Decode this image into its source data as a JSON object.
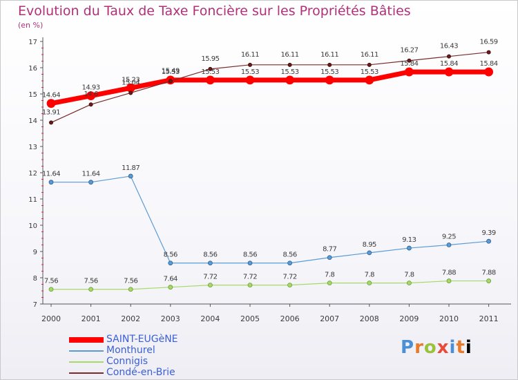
{
  "header": {
    "title": "Evolution du Taux de Taxe Foncière sur les Propriétés Bâties",
    "unit": "(en %)"
  },
  "brand": {
    "letters": [
      "P",
      "r",
      "o",
      "x",
      "i",
      "t",
      "i"
    ]
  },
  "colors": {
    "title": "#b0307a",
    "axis": "#555555",
    "tick_red": "#e0204a",
    "label": "#3a3a3a"
  },
  "chart_data": {
    "type": "line",
    "title": "Evolution du Taux de Taxe Foncière sur les Propriétés Bâties",
    "ylabel": "(en %)",
    "xlabel": "",
    "ylim": [
      7,
      17
    ],
    "yticks": [
      "7",
      "8",
      "9",
      "10",
      "11",
      "12",
      "13",
      "14",
      "15",
      "16",
      "17"
    ],
    "categories": [
      "2000",
      "2001",
      "2002",
      "2003",
      "2004",
      "2005",
      "2006",
      "2007",
      "2008",
      "2009",
      "2010",
      "2011"
    ],
    "series": [
      {
        "name": "SAINT-EUGèNE",
        "color": "#ff0000",
        "values": [
          14.64,
          14.93,
          15.23,
          15.53,
          15.53,
          15.53,
          15.53,
          15.53,
          15.53,
          15.84,
          15.84,
          15.84
        ],
        "labels": [
          "14.64",
          "14.93",
          "15.23",
          "15.53",
          "15.53",
          "15.53",
          "15.53",
          "15.53",
          "15.53",
          "15.84",
          "15.84",
          "15.84"
        ]
      },
      {
        "name": "Monthurel",
        "color": "#5b9bd5",
        "values": [
          11.64,
          11.64,
          11.87,
          8.56,
          8.56,
          8.56,
          8.56,
          8.77,
          8.95,
          9.13,
          9.25,
          9.39
        ],
        "labels": [
          "11.64",
          "11.64",
          "11.87",
          "8.56",
          "8.56",
          "8.56",
          "8.56",
          "8.77",
          "8.95",
          "9.13",
          "9.25",
          "9.39"
        ]
      },
      {
        "name": "Connigis",
        "color": "#a6d96a",
        "values": [
          7.56,
          7.56,
          7.56,
          7.64,
          7.72,
          7.72,
          7.72,
          7.8,
          7.8,
          7.8,
          7.88,
          7.88
        ],
        "labels": [
          "7.56",
          "7.56",
          "7.56",
          "7.64",
          "7.72",
          "7.72",
          "7.72",
          "7.8",
          "7.8",
          "7.8",
          "7.88",
          "7.88"
        ]
      },
      {
        "name": "Condé-en-Brie",
        "color": "#7a2a2a",
        "values": [
          13.91,
          14.6,
          15.04,
          15.49,
          15.95,
          16.11,
          16.11,
          16.11,
          16.11,
          16.27,
          16.43,
          16.59
        ],
        "labels": [
          "13.91",
          "14.6",
          "15.04",
          "15.49",
          "15.95",
          "16.11",
          "16.11",
          "16.11",
          "16.11",
          "16.27",
          "16.43",
          "16.59"
        ]
      }
    ]
  }
}
